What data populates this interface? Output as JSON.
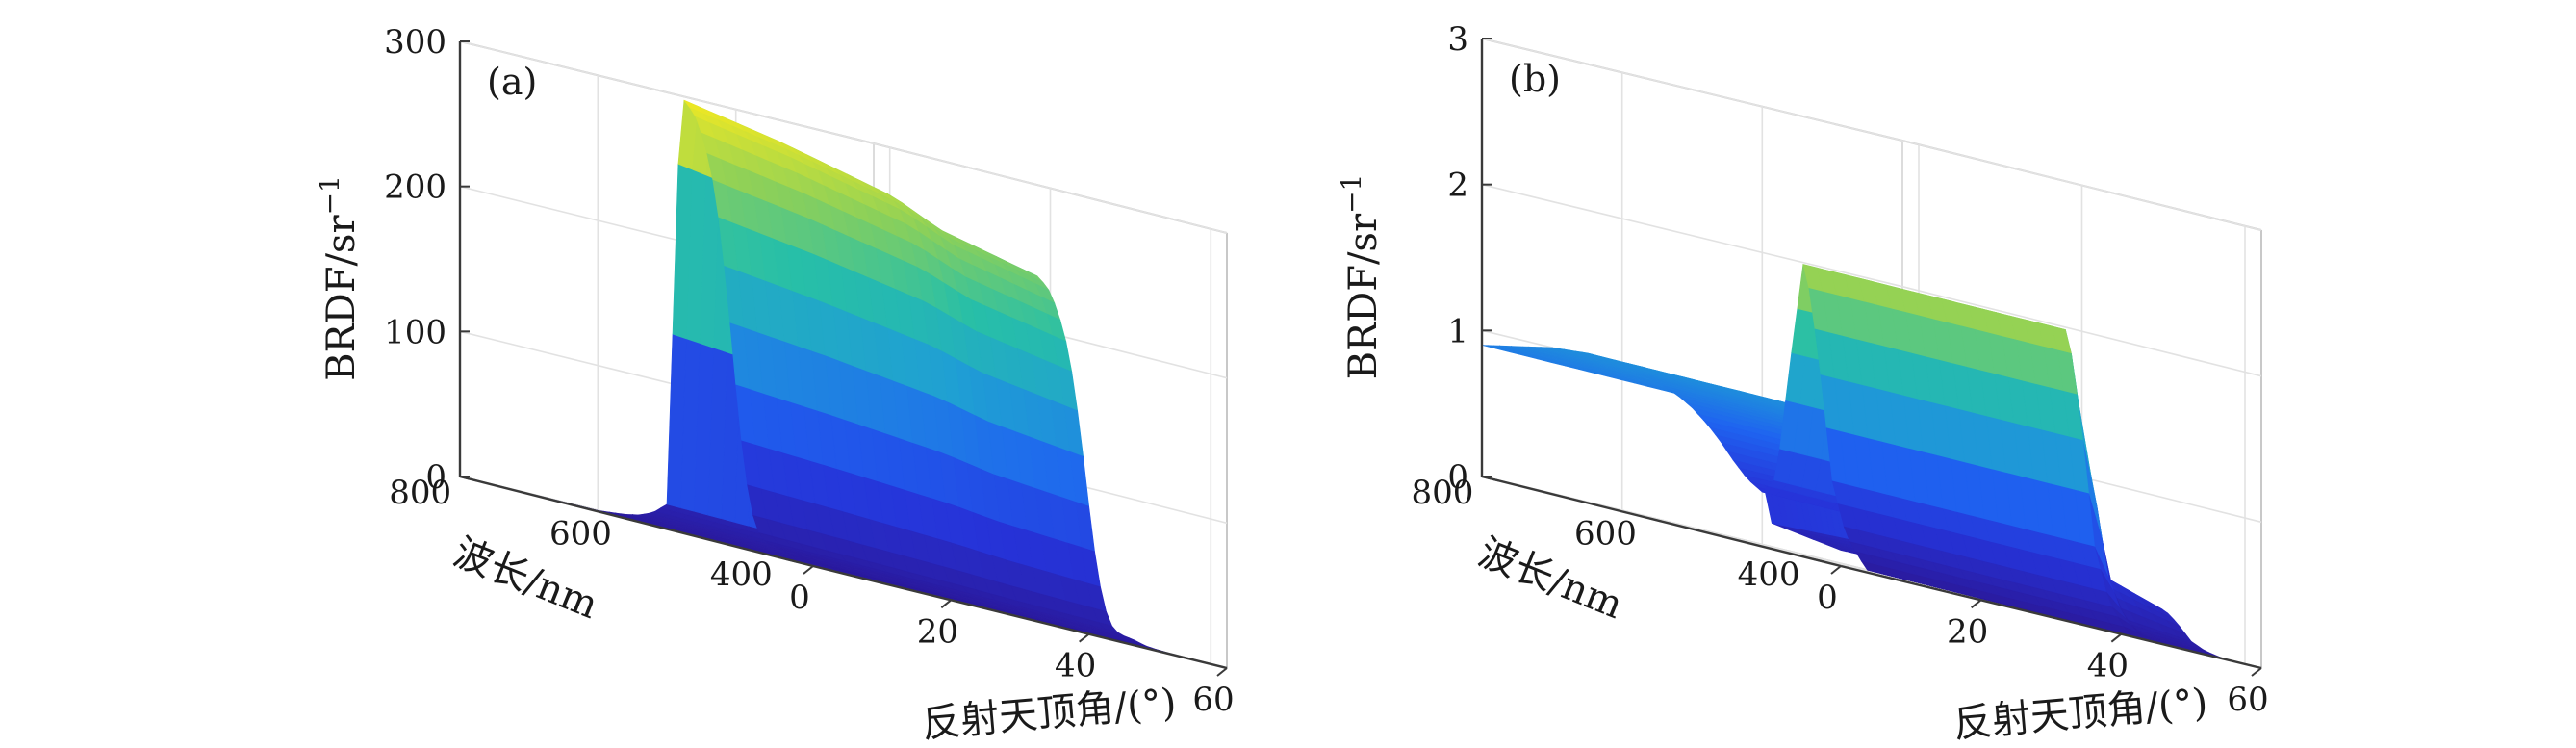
{
  "chart_data": [
    {
      "type": "surface",
      "panel_label": "(a)",
      "xlabel": "反射天顶角/(°)",
      "ylabel": "波长/nm",
      "zlabel_base": "BRDF/sr",
      "zlabel_exp": "−1",
      "xlim": [
        0,
        60
      ],
      "ylim": [
        380,
        820
      ],
      "zlim": [
        0,
        300
      ],
      "x_ticks": [
        "0",
        "20",
        "40",
        "60"
      ],
      "y_ticks": [
        "400",
        "600",
        "800"
      ],
      "z_ticks": [
        "0",
        "100",
        "200",
        "300"
      ],
      "grid": true,
      "colormap": [
        "#2a1a9e",
        "#2633d8",
        "#1f63f0",
        "#1f9fd4",
        "#27bfa8",
        "#8bd05a",
        "#f7ea1f"
      ],
      "profile_angle": [
        0,
        5,
        10,
        15,
        20,
        24,
        26,
        28,
        30,
        32,
        34,
        35,
        36,
        37,
        38,
        39,
        40,
        41,
        42,
        43,
        44,
        45,
        46,
        47,
        48,
        50,
        55,
        60
      ],
      "profile_value": [
        0,
        0,
        0,
        0,
        0,
        2,
        4,
        8,
        16,
        300,
        290,
        278,
        262,
        240,
        205,
        160,
        110,
        65,
        32,
        14,
        8,
        6,
        5,
        4,
        2,
        1,
        0,
        0
      ],
      "wavelength_scale": [
        [
          380,
          0.8
        ],
        [
          500,
          0.85
        ],
        [
          560,
          0.9
        ],
        [
          700,
          0.96
        ],
        [
          820,
          1.0
        ]
      ]
    },
    {
      "type": "surface",
      "panel_label": "(b)",
      "xlabel": "反射天顶角/(°)",
      "ylabel": "波长/nm",
      "zlabel_base": "BRDF/sr",
      "zlabel_exp": "−1",
      "xlim": [
        0,
        60
      ],
      "ylim": [
        380,
        820
      ],
      "zlim": [
        0,
        3
      ],
      "x_ticks": [
        "0",
        "20",
        "40",
        "60"
      ],
      "y_ticks": [
        "400",
        "600",
        "800"
      ],
      "z_ticks": [
        "0",
        "1",
        "2",
        "3"
      ],
      "grid": true,
      "colormap": [
        "#2a1a9e",
        "#2633d8",
        "#1f63f0",
        "#1f9fd4",
        "#27bfa8",
        "#8bd05a",
        "#f7ea1f"
      ],
      "profile_angle": [
        0,
        5,
        10,
        15,
        20,
        22,
        24,
        26,
        28,
        30,
        32,
        34,
        36,
        38,
        40,
        42,
        44,
        46,
        48,
        50,
        52,
        54,
        55,
        56,
        57,
        58,
        59,
        60
      ],
      "profile_value": [
        0.9,
        0.95,
        1.0,
        1.02,
        1.0,
        0.97,
        0.95,
        0.92,
        0.88,
        0.82,
        0.74,
        0.64,
        0.52,
        0.42,
        0.36,
        0.48,
        1.3,
        2.05,
        1.4,
        0.55,
        0.2,
        0.06,
        0,
        0,
        0,
        0,
        0,
        0
      ],
      "wavelength_scale": [
        [
          380,
          0.12
        ],
        [
          470,
          0.2
        ],
        [
          480,
          0.6
        ],
        [
          490,
          1.0
        ],
        [
          820,
          1.0
        ]
      ]
    }
  ]
}
